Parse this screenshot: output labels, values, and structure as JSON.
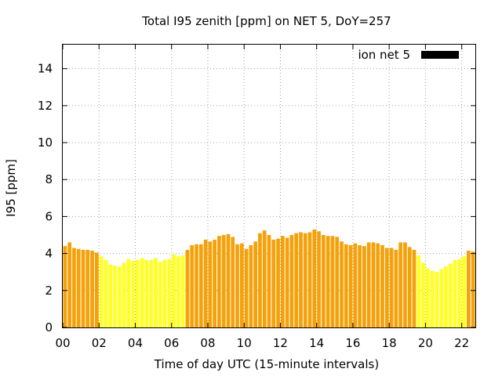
{
  "chart_data": {
    "type": "bar",
    "title": "Total I95 zenith [ppm] on NET 5, DoY=257",
    "xlabel": "Time of day UTC (15-minute intervals)",
    "ylabel": "I95 [ppm]",
    "xlim": [
      0,
      22.75
    ],
    "ylim": [
      0,
      15.3
    ],
    "x_ticks": [
      "00",
      "02",
      "04",
      "06",
      "08",
      "10",
      "12",
      "14",
      "16",
      "18",
      "20",
      "22"
    ],
    "y_ticks": [
      "0",
      "2",
      "4",
      "6",
      "8",
      "10",
      "12",
      "14"
    ],
    "grid": true,
    "legend": {
      "position": "top-right",
      "entries": [
        {
          "label": "ion net 5",
          "color": "#000000"
        }
      ]
    },
    "bin_hours": 0.25,
    "colors": {
      "orange": "#f5a10a",
      "yellow": "#ffff22",
      "legend": "#000000"
    },
    "series": [
      {
        "x_start": 0,
        "values": [
          4.4,
          4.6,
          4.3,
          4.25,
          4.2,
          4.2,
          4.15,
          4.05,
          3.85,
          3.65,
          3.4,
          3.35,
          3.3,
          3.5,
          3.7,
          3.6,
          3.65,
          3.75,
          3.65,
          3.65,
          3.75,
          3.55,
          3.65,
          3.7,
          3.95,
          3.85,
          3.9,
          4.2,
          4.45,
          4.5,
          4.5,
          4.75,
          4.65,
          4.75,
          4.95,
          5.0,
          5.05,
          4.9,
          4.5,
          4.55,
          4.25,
          4.45,
          4.65,
          5.1,
          5.25,
          5.0,
          4.75,
          4.8,
          4.95,
          4.85,
          5.0,
          5.1,
          5.15,
          5.1,
          5.15,
          5.3,
          5.2,
          5.0,
          4.95,
          4.95,
          4.9,
          4.65,
          4.5,
          4.45,
          4.55,
          4.45,
          4.4,
          4.6,
          4.6,
          4.55,
          4.45,
          4.3,
          4.3,
          4.2,
          4.6,
          4.6,
          4.35,
          4.2,
          3.9,
          3.5,
          3.2,
          3.05,
          3.0,
          3.15,
          3.3,
          3.45,
          3.65,
          3.7,
          3.85,
          4.15,
          4.1
        ],
        "colors": [
          "orange",
          "orange",
          "orange",
          "orange",
          "orange",
          "orange",
          "orange",
          "orange",
          "yellow",
          "yellow",
          "yellow",
          "yellow",
          "yellow",
          "yellow",
          "yellow",
          "yellow",
          "yellow",
          "yellow",
          "yellow",
          "yellow",
          "yellow",
          "yellow",
          "yellow",
          "yellow",
          "yellow",
          "yellow",
          "yellow",
          "orange",
          "orange",
          "orange",
          "orange",
          "orange",
          "orange",
          "orange",
          "orange",
          "orange",
          "orange",
          "orange",
          "orange",
          "orange",
          "orange",
          "orange",
          "orange",
          "orange",
          "orange",
          "orange",
          "orange",
          "orange",
          "orange",
          "orange",
          "orange",
          "orange",
          "orange",
          "orange",
          "orange",
          "orange",
          "orange",
          "orange",
          "orange",
          "orange",
          "orange",
          "orange",
          "orange",
          "orange",
          "orange",
          "orange",
          "orange",
          "orange",
          "orange",
          "orange",
          "orange",
          "orange",
          "orange",
          "orange",
          "orange",
          "orange",
          "orange",
          "orange",
          "yellow",
          "yellow",
          "yellow",
          "yellow",
          "yellow",
          "yellow",
          "yellow",
          "yellow",
          "yellow",
          "yellow",
          "yellow",
          "orange",
          "orange"
        ]
      }
    ]
  }
}
